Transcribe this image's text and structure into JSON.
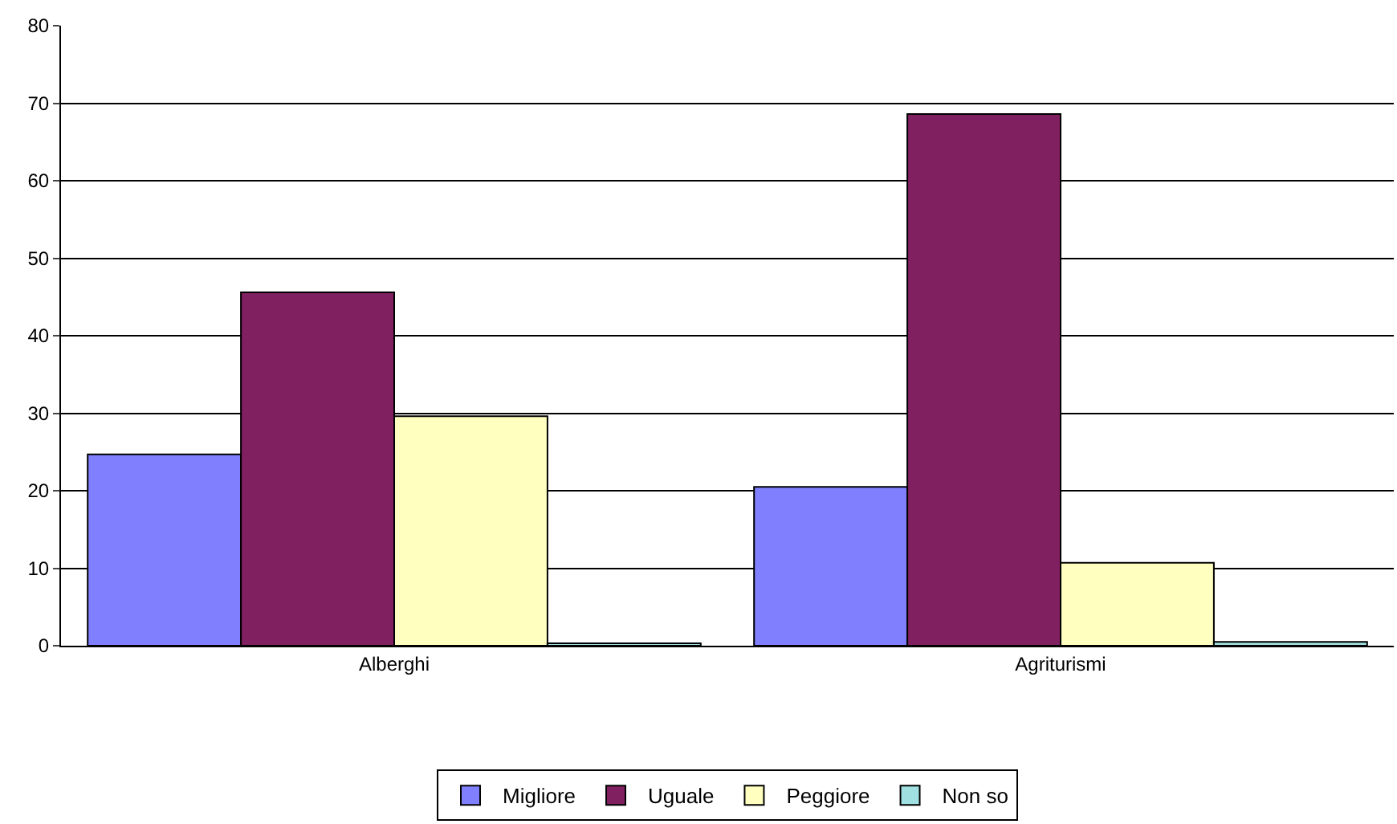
{
  "chart_data": {
    "type": "bar",
    "categories": [
      "Alberghi",
      "Agriturismi"
    ],
    "series": [
      {
        "name": "Migliore",
        "color": "#8080ff",
        "values": [
          24.7,
          20.5
        ]
      },
      {
        "name": "Uguale",
        "color": "#802060",
        "values": [
          45.6,
          68.6
        ]
      },
      {
        "name": "Peggiore",
        "color": "#ffffc0",
        "values": [
          29.6,
          10.7
        ]
      },
      {
        "name": "Non so",
        "color": "#a0e0e0",
        "values": [
          0.3,
          0.5
        ]
      }
    ],
    "ylim": [
      0,
      80
    ],
    "yticks": [
      0,
      10,
      20,
      30,
      40,
      50,
      60,
      70,
      80
    ],
    "grid": "y",
    "legend": "bottom"
  }
}
